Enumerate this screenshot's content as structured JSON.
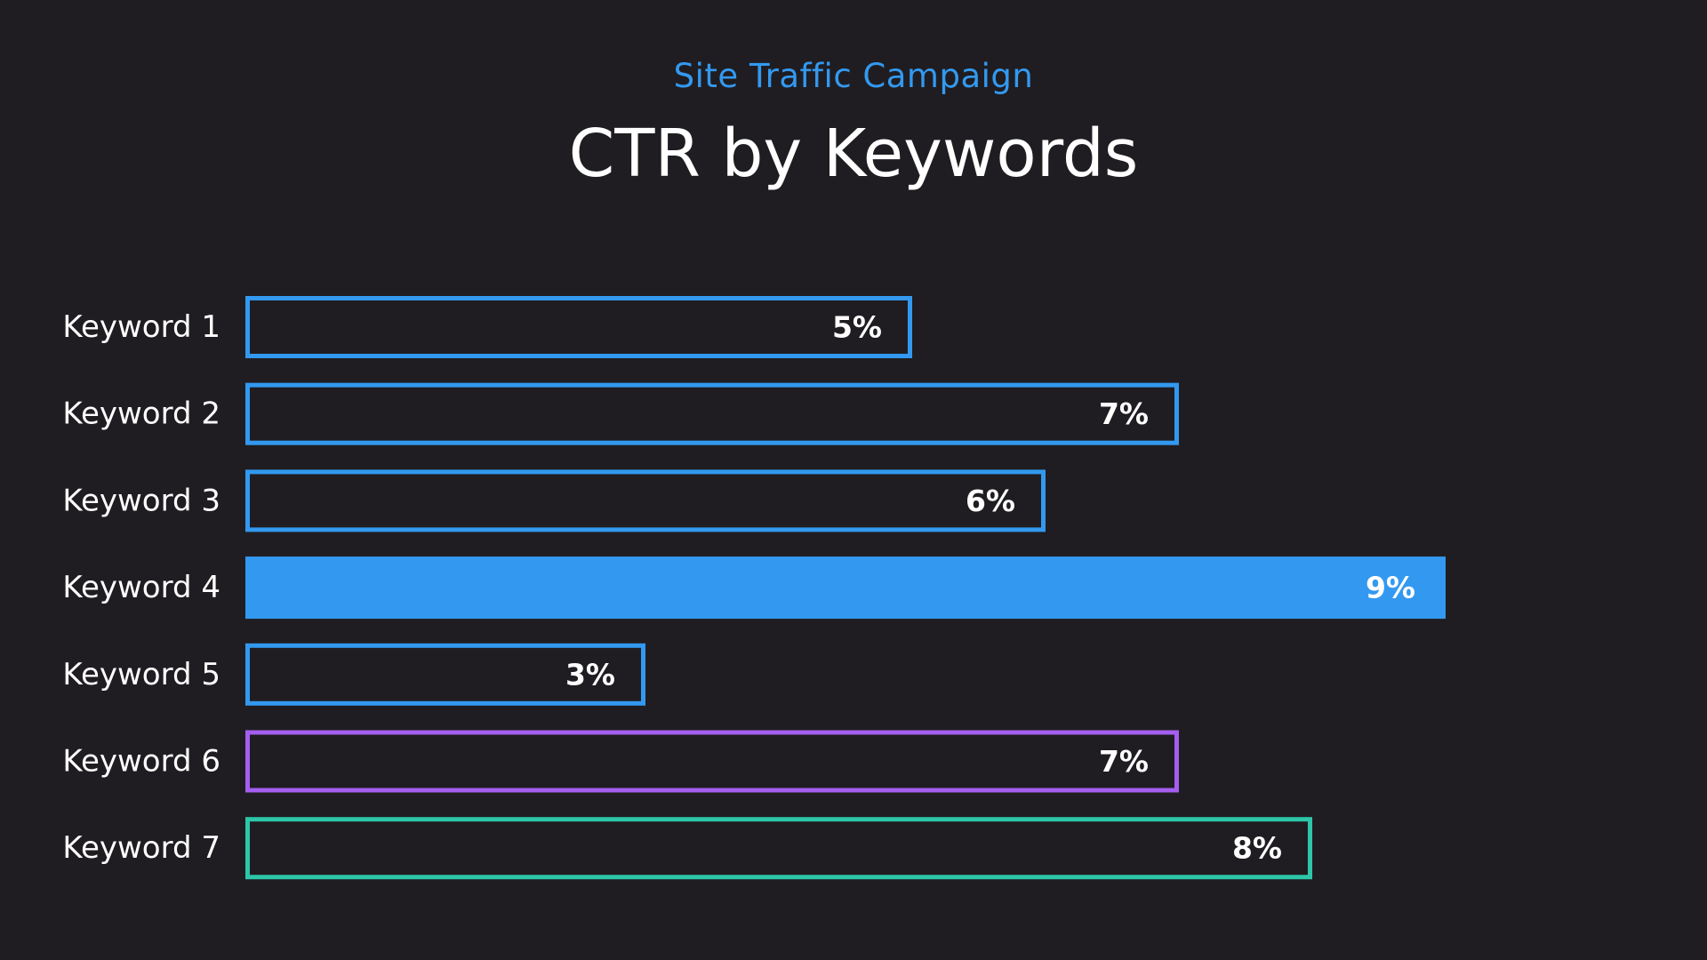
{
  "chart_data": {
    "type": "bar",
    "orientation": "horizontal",
    "subtitle": "Site Traffic Campaign",
    "title": "CTR by Keywords",
    "xlabel": "",
    "ylabel": "",
    "xlim": [
      0,
      10
    ],
    "grid": false,
    "legend": "none",
    "categories": [
      "Keyword 1",
      "Keyword 2",
      "Keyword 3",
      "Keyword 4",
      "Keyword 5",
      "Keyword 6",
      "Keyword 7"
    ],
    "series": [
      {
        "values": [
          5,
          7,
          6,
          9,
          3,
          7,
          8
        ],
        "data_labels": [
          "5%",
          "7%",
          "6%",
          "9%",
          "3%",
          "7%",
          "8%"
        ],
        "colors": [
          "#3399f0",
          "#3399f0",
          "#3399f0",
          "#3399f0",
          "#3399f0",
          "#a45ef0",
          "#2dc6a8"
        ],
        "filled": [
          false,
          false,
          false,
          true,
          false,
          false,
          false
        ]
      }
    ]
  },
  "colors": {
    "background": "#1f1d21",
    "accent": "#3399f0",
    "text": "#ffffff"
  }
}
